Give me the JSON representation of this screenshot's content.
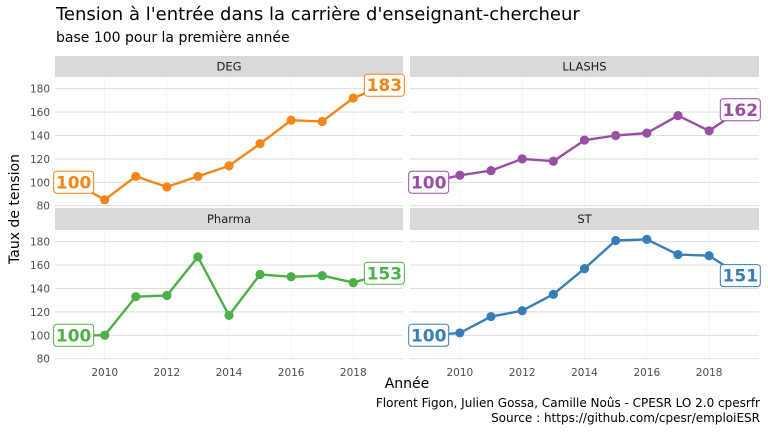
{
  "title": "Tension à l'entrée dans la carrière d'enseignant-chercheur",
  "subtitle": "base 100 pour la première année",
  "caption": {
    "line1": "Florent Figon, Julien Gossa, Camille Noûs - CPESR LO 2.0 cpesrfr",
    "line2": "Source : https://github.com/cpesr/emploiESR"
  },
  "chart_data": {
    "type": "line",
    "xlabel": "Année",
    "ylabel": "Taux de tension",
    "x": [
      2009,
      2010,
      2011,
      2012,
      2013,
      2014,
      2015,
      2016,
      2017,
      2018,
      2019
    ],
    "x_ticks": [
      2010,
      2012,
      2014,
      2016,
      2018
    ],
    "x_tick_labels": [
      "2010",
      "2012",
      "2014",
      "2016",
      "2018"
    ],
    "y_ticks": [
      80,
      100,
      120,
      140,
      160,
      180
    ],
    "y_tick_labels": [
      "80",
      "100",
      "120",
      "140",
      "160",
      "180"
    ],
    "ylim": [
      78,
      190
    ],
    "xlim": [
      2008.4,
      2019.6
    ],
    "grid": true,
    "panels": [
      {
        "name": "DEG",
        "color": "#F58518",
        "values": [
          100,
          85,
          105,
          96,
          105,
          114,
          133,
          153,
          152,
          172,
          183
        ],
        "first_label": "100",
        "last_label": "183"
      },
      {
        "name": "LLASHS",
        "color": "#984EA3",
        "values": [
          100,
          106,
          110,
          120,
          118,
          136,
          140,
          142,
          157,
          144,
          162
        ],
        "first_label": "100",
        "last_label": "162"
      },
      {
        "name": "Pharma",
        "color": "#4DAF4A",
        "values": [
          100,
          100,
          133,
          134,
          167,
          117,
          152,
          150,
          151,
          145,
          153
        ],
        "first_label": "100",
        "last_label": "153"
      },
      {
        "name": "ST",
        "color": "#377EB8",
        "values": [
          100,
          102,
          116,
          121,
          135,
          157,
          181,
          182,
          169,
          168,
          151
        ],
        "first_label": "100",
        "last_label": "151"
      }
    ]
  }
}
